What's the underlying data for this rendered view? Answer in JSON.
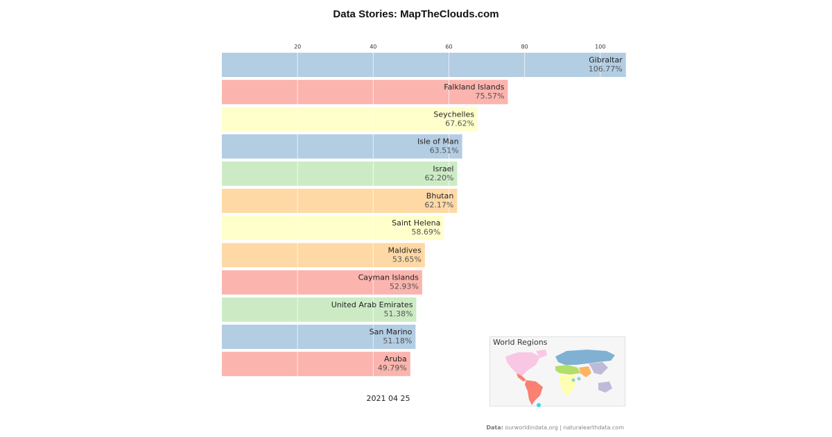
{
  "title": "Data Stories: MapTheClouds.com",
  "date_label": "2021 04 25",
  "legend_title": "World Regions",
  "footer": {
    "source_label": "Data:",
    "source_text": "ourworldindata.org | naturalearthdata.com"
  },
  "colors": {
    "blue": "#b3cde3",
    "red": "#fbb4ae",
    "yellow": "#ffffcc",
    "green": "#ccebc5",
    "orange": "#fed9a6",
    "pink": "#f9c7e4"
  },
  "chart_data": {
    "type": "bar",
    "orientation": "horizontal",
    "categories": [
      "Gibraltar",
      "Falkland Islands",
      "Seychelles",
      "Isle of Man",
      "Israel",
      "Bhutan",
      "Saint Helena",
      "Maldives",
      "Cayman Islands",
      "United Arab Emirates",
      "San Marino",
      "Aruba"
    ],
    "values": [
      106.77,
      75.57,
      67.62,
      63.51,
      62.2,
      62.17,
      58.69,
      53.65,
      52.93,
      51.38,
      51.18,
      49.79
    ],
    "value_labels": [
      "106.77%",
      "75.57%",
      "67.62%",
      "63.51%",
      "62.20%",
      "62.17%",
      "58.69%",
      "53.65%",
      "52.93%",
      "51.38%",
      "51.18%",
      "49.79%"
    ],
    "bar_colors": [
      "blue",
      "red",
      "yellow",
      "blue",
      "green",
      "orange",
      "yellow",
      "orange",
      "red",
      "green",
      "blue",
      "red"
    ],
    "xticks": [
      20,
      40,
      60,
      80,
      100
    ],
    "xlim": [
      0,
      107
    ],
    "grid": true,
    "axis_position": "top"
  }
}
